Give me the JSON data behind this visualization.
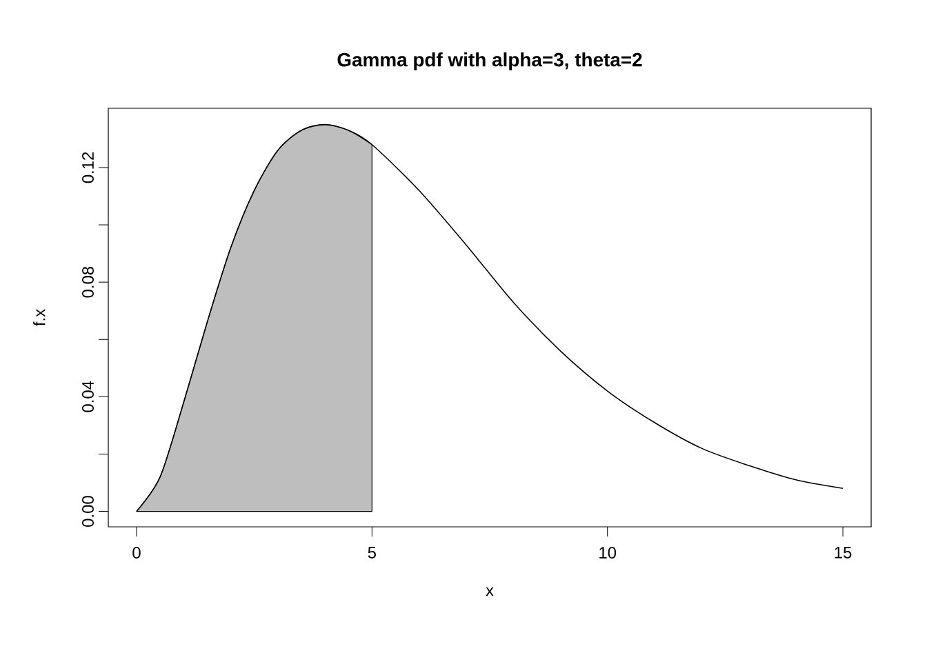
{
  "chart_data": {
    "type": "line",
    "title": "Gamma pdf with alpha=3, theta=2",
    "xlabel": "x",
    "ylabel": "f.x",
    "series": [
      {
        "type": "area",
        "color": "#bebebe",
        "x": [
          0,
          0.5,
          1,
          1.5,
          2,
          2.5,
          3,
          3.5,
          4,
          4.5,
          5
        ],
        "values": [
          0,
          0.012,
          0.038,
          0.066,
          0.092,
          0.112,
          0.126,
          0.133,
          0.135,
          0.133,
          0.128
        ]
      },
      {
        "color": "#000000",
        "x": [
          0,
          0.5,
          1,
          1.5,
          2,
          2.5,
          3,
          3.5,
          4,
          4.5,
          5,
          6,
          7,
          8,
          9,
          10,
          11,
          12,
          13,
          14,
          15
        ],
        "values": [
          0,
          0.012,
          0.038,
          0.066,
          0.092,
          0.112,
          0.126,
          0.133,
          0.135,
          0.133,
          0.128,
          0.112,
          0.093,
          0.073,
          0.056,
          0.042,
          0.031,
          0.022,
          0.016,
          0.011,
          0.008
        ]
      }
    ],
    "xlim": [
      -0.6,
      15.6
    ],
    "ylim": [
      -0.0054,
      0.1407
    ],
    "xticks": [
      0,
      5,
      10,
      15
    ],
    "yticks": [
      {
        "value": 0,
        "label": "0.00"
      },
      {
        "value": 0.02,
        "label": null
      },
      {
        "value": 0.04,
        "label": "0.04"
      },
      {
        "value": 0.06,
        "label": null
      },
      {
        "value": 0.08,
        "label": "0.08"
      },
      {
        "value": 0.1,
        "label": null
      },
      {
        "value": 0.12,
        "label": "0.12"
      }
    ]
  }
}
